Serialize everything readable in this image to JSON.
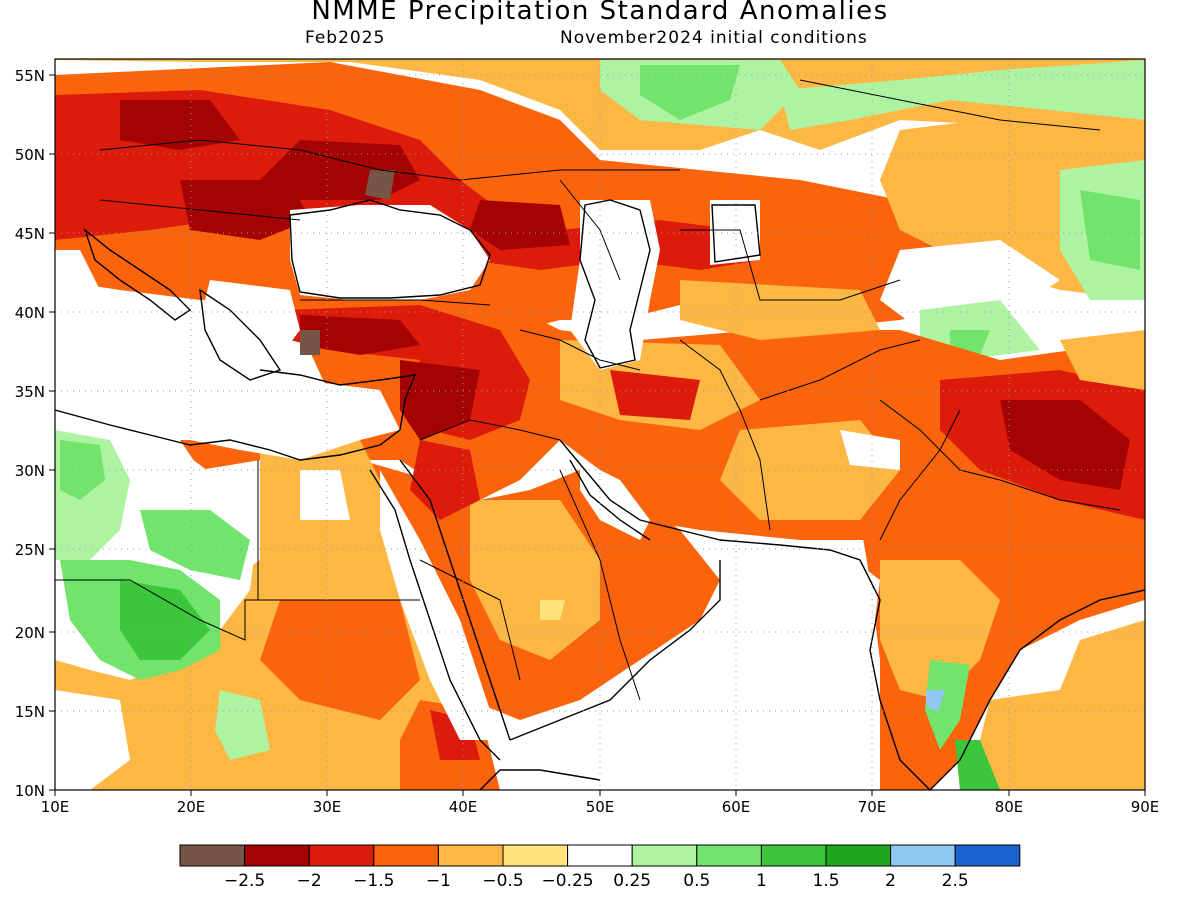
{
  "title": "NMME Precipitation Standard Anomalies",
  "subtitle_left": "Feb2025",
  "subtitle_right": "November2024 initial conditions",
  "axes": {
    "lon": {
      "min": 10,
      "max": 90,
      "ticks": [
        "10E",
        "20E",
        "30E",
        "40E",
        "50E",
        "60E",
        "70E",
        "80E",
        "90E"
      ]
    },
    "lat": {
      "min": 10,
      "max": 56.5,
      "ticks": [
        "55N",
        "50N",
        "45N",
        "40N",
        "35N",
        "30N",
        "25N",
        "20N",
        "15N",
        "10N"
      ]
    }
  },
  "colorbar": {
    "colors": [
      "#765546",
      "#a50303",
      "#dd1b0b",
      "#fa640c",
      "#fdb744",
      "#fde37a",
      "#ffffff",
      "#aef3a2",
      "#72e46b",
      "#3bc63c",
      "#1ea61f",
      "#8fc8f3",
      "#1b63d1"
    ],
    "labels": [
      "−2.5",
      "−2",
      "−1.5",
      "−1",
      "−0.5",
      "−0.25",
      "0.25",
      "0.5",
      "1",
      "1.5",
      "2",
      "2.5"
    ]
  }
}
